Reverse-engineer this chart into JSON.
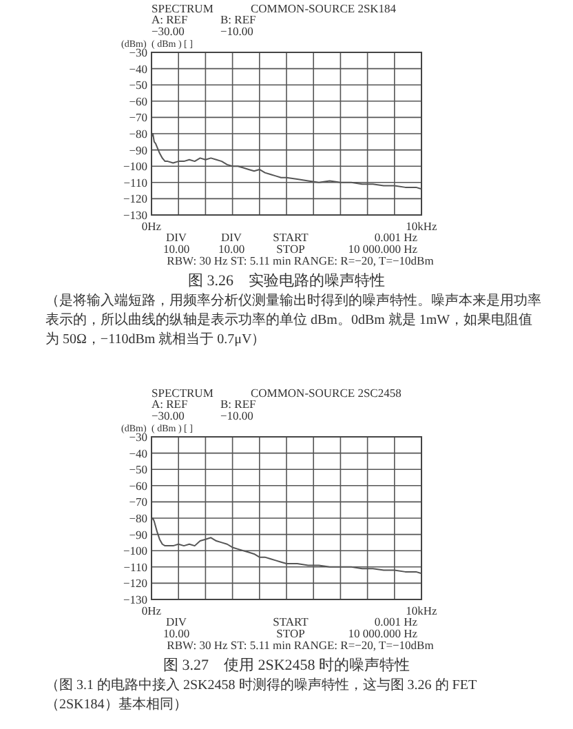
{
  "chart_data": [
    {
      "type": "line",
      "title": "SPECTRUM",
      "subtitle": "COMMON-SOURCE 2SK184",
      "ylabel": "(dBm)",
      "annotations": [
        "A: REF\n−30.00",
        "B: REF\n−10.00",
        "(     dBm     )  [                ]",
        "DIV\n10.00",
        "DIV\n10.00",
        "START\nSTOP",
        "0.001 Hz\n10 000.000 Hz",
        "RBW: 30 Hz  ST: 5.11 min  RANGE: R=−20, T=−10dBm",
        "图 3.26　实验电路的噪声特性",
        "（是将输入端短路，用频率分析仪测量输出时得到的噪声特性。噪声本来是用功率表示的，所以曲线的纵轴是表示功率的单位 dBm。0dBm 就是 1mW，如果电阻值为 50Ω，−110dBm 就相当于 0.7μV）"
      ],
      "x": [
        0,
        0.05,
        0.1,
        0.15,
        0.2,
        0.3,
        0.4,
        0.5,
        0.6,
        0.8,
        1.0,
        1.2,
        1.4,
        1.6,
        1.8,
        2.0,
        2.2,
        2.4,
        2.6,
        2.8,
        3.0,
        3.2,
        3.4,
        3.6,
        3.8,
        4.0,
        4.2,
        4.4,
        4.6,
        4.8,
        5.0,
        5.4,
        5.8,
        6.2,
        6.6,
        7.0,
        7.4,
        7.8,
        8.2,
        8.6,
        9.0,
        9.4,
        9.8,
        10
      ],
      "values": [
        -82,
        -80,
        -85,
        -86,
        -88,
        -92,
        -95,
        -97,
        -97,
        -98,
        -97,
        -97,
        -96,
        -97,
        -95,
        -96,
        -95,
        -96,
        -97,
        -99,
        -100,
        -100,
        -101,
        -102,
        -103,
        -102,
        -104,
        -105,
        -106,
        -107,
        -107,
        -108,
        -109,
        -110,
        -109,
        -110,
        -110,
        -111,
        -111,
        -112,
        -112,
        -113,
        -113,
        -114
      ],
      "color": "#555555",
      "xlim": [
        0,
        10
      ],
      "ylim": [
        -130,
        -30
      ],
      "xticks": [
        {
          "value": 0,
          "label": "0Hz"
        },
        {
          "value": 1,
          "label": null
        },
        {
          "value": 2,
          "label": null
        },
        {
          "value": 3,
          "label": null
        },
        {
          "value": 4,
          "label": null
        },
        {
          "value": 5,
          "label": null
        },
        {
          "value": 6,
          "label": null
        },
        {
          "value": 7,
          "label": null
        },
        {
          "value": 8,
          "label": null
        },
        {
          "value": 9,
          "label": null
        },
        {
          "value": 10,
          "label": "10kHz"
        }
      ],
      "yticks": [
        -30,
        -40,
        -50,
        -60,
        -70,
        -80,
        -90,
        -100,
        -110,
        -120,
        -130
      ],
      "grid": true
    },
    {
      "type": "line",
      "title": "SPECTRUM",
      "subtitle": "COMMON-SOURCE 2SC2458",
      "ylabel": "(dBm)",
      "annotations": [
        "A: REF\n−30.00",
        "B: REF\n−10.00",
        "(     dBm     )  [                ]",
        "DIV\n10.00",
        "START\nSTOP",
        "0.001 Hz\n10 000.000 Hz",
        "RBW: 30 Hz  ST: 5.11 min  RANGE: R=−20, T=−10dBm",
        "图 3.27　使用 2SK2458 时的噪声特性",
        "（图 3.1 的电路中接入 2SK2458 时测得的噪声特性，这与图 3.26 的 FET（2SK184）基本相同）"
      ],
      "x": [
        0,
        0.05,
        0.1,
        0.15,
        0.2,
        0.3,
        0.4,
        0.5,
        0.6,
        0.8,
        1.0,
        1.2,
        1.4,
        1.6,
        1.8,
        2.0,
        2.2,
        2.4,
        2.6,
        2.8,
        3.0,
        3.2,
        3.4,
        3.6,
        3.8,
        4.0,
        4.2,
        4.4,
        4.6,
        4.8,
        5.0,
        5.4,
        5.8,
        6.2,
        6.6,
        7.0,
        7.4,
        7.8,
        8.2,
        8.6,
        9.0,
        9.4,
        9.8,
        10
      ],
      "values": [
        -81,
        -80,
        -82,
        -85,
        -88,
        -93,
        -96,
        -97,
        -97,
        -97,
        -96,
        -97,
        -96,
        -97,
        -94,
        -93,
        -92,
        -94,
        -95,
        -96,
        -98,
        -99,
        -100,
        -101,
        -102,
        -104,
        -104,
        -105,
        -106,
        -107,
        -108,
        -108,
        -109,
        -109,
        -110,
        -110,
        -110,
        -111,
        -111,
        -112,
        -112,
        -113,
        -113,
        -114
      ],
      "color": "#555555",
      "xlim": [
        0,
        10
      ],
      "ylim": [
        -130,
        -30
      ],
      "xticks": [
        {
          "value": 0,
          "label": "0Hz"
        },
        {
          "value": 1,
          "label": null
        },
        {
          "value": 2,
          "label": null
        },
        {
          "value": 3,
          "label": null
        },
        {
          "value": 4,
          "label": null
        },
        {
          "value": 5,
          "label": null
        },
        {
          "value": 6,
          "label": null
        },
        {
          "value": 7,
          "label": null
        },
        {
          "value": 8,
          "label": null
        },
        {
          "value": 9,
          "label": null
        },
        {
          "value": 10,
          "label": "10kHz"
        }
      ],
      "yticks": [
        -30,
        -40,
        -50,
        -60,
        -70,
        -80,
        -90,
        -100,
        -110,
        -120,
        -130
      ],
      "grid": true
    }
  ]
}
